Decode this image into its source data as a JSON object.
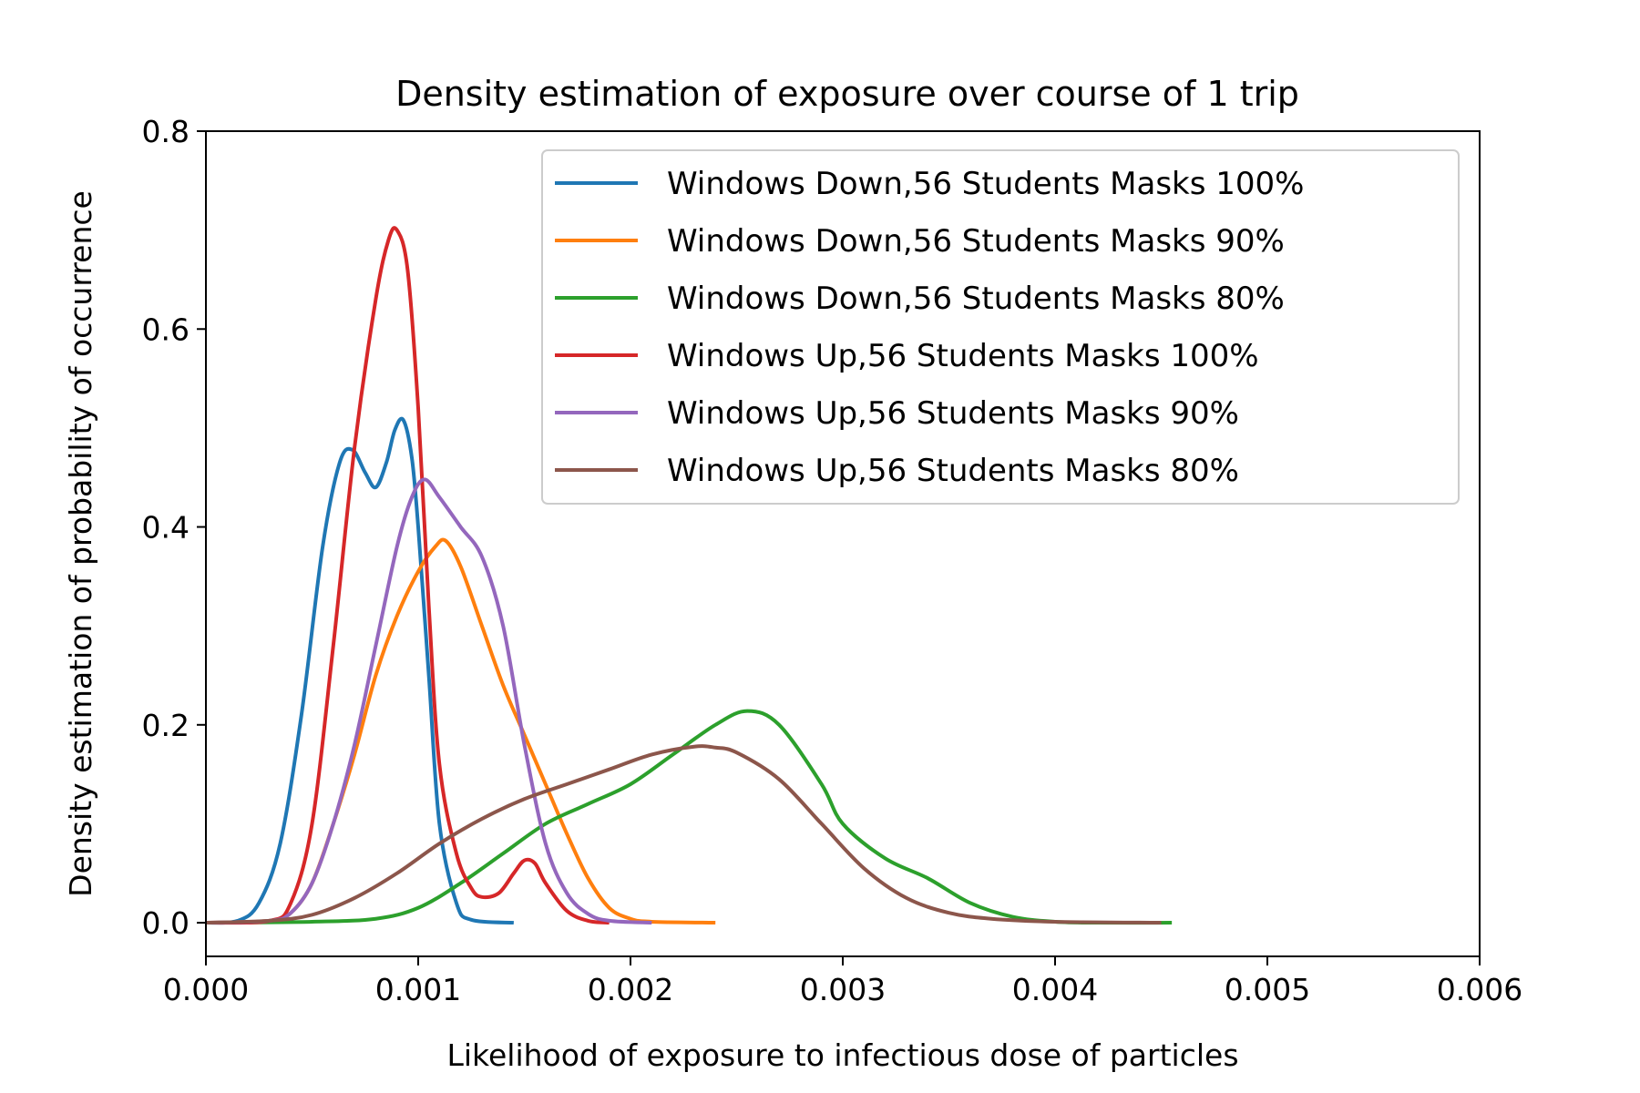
{
  "chart_data": {
    "type": "line",
    "title": "Density estimation of exposure over course of 1 trip",
    "xlabel": "Likelihood of exposure to infectious dose of particles",
    "ylabel": "Density estimation of probability of occurrence",
    "xlim": [
      0,
      0.006
    ],
    "ylim": [
      -0.034,
      0.8
    ],
    "x_ticks": [
      0,
      0.001,
      0.002,
      0.003,
      0.004,
      0.005,
      0.006
    ],
    "x_tick_labels": [
      "0.000",
      "0.001",
      "0.002",
      "0.003",
      "0.004",
      "0.005",
      "0.006"
    ],
    "y_ticks": [
      0,
      0.2,
      0.4,
      0.6,
      0.8
    ],
    "y_tick_labels": [
      "0.0",
      "0.2",
      "0.4",
      "0.6",
      "0.8"
    ],
    "grid": false,
    "legend_position": "top-right",
    "series": [
      {
        "name": "Windows Down,56 Students Masks 100%",
        "color": "#1f77b4",
        "points": [
          [
            0.0,
            0.0
          ],
          [
            0.00015,
            0.002
          ],
          [
            0.00025,
            0.02
          ],
          [
            0.00035,
            0.08
          ],
          [
            0.00045,
            0.21
          ],
          [
            0.00055,
            0.38
          ],
          [
            0.00063,
            0.465
          ],
          [
            0.00069,
            0.478
          ],
          [
            0.00075,
            0.455
          ],
          [
            0.0008,
            0.44
          ],
          [
            0.00085,
            0.465
          ],
          [
            0.00089,
            0.498
          ],
          [
            0.00093,
            0.508
          ],
          [
            0.00097,
            0.47
          ],
          [
            0.001,
            0.4
          ],
          [
            0.00105,
            0.25
          ],
          [
            0.0011,
            0.1
          ],
          [
            0.00118,
            0.02
          ],
          [
            0.00125,
            0.003
          ],
          [
            0.00145,
            0.0
          ]
        ]
      },
      {
        "name": "Windows Down,56 Students Masks 90%",
        "color": "#ff7f0e",
        "points": [
          [
            0.0,
            0.0
          ],
          [
            0.0003,
            0.002
          ],
          [
            0.0004,
            0.01
          ],
          [
            0.0005,
            0.04
          ],
          [
            0.0006,
            0.1
          ],
          [
            0.0007,
            0.17
          ],
          [
            0.0008,
            0.25
          ],
          [
            0.0009,
            0.31
          ],
          [
            0.001,
            0.355
          ],
          [
            0.00108,
            0.38
          ],
          [
            0.00113,
            0.386
          ],
          [
            0.0012,
            0.36
          ],
          [
            0.0013,
            0.3
          ],
          [
            0.0014,
            0.24
          ],
          [
            0.0015,
            0.19
          ],
          [
            0.0016,
            0.14
          ],
          [
            0.0017,
            0.09
          ],
          [
            0.0018,
            0.045
          ],
          [
            0.0019,
            0.015
          ],
          [
            0.002,
            0.004
          ],
          [
            0.0021,
            0.001
          ],
          [
            0.0024,
            0.0
          ]
        ]
      },
      {
        "name": "Windows Down,56 Students Masks 80%",
        "color": "#2ca02c",
        "points": [
          [
            0.0,
            0.0
          ],
          [
            0.0005,
            0.001
          ],
          [
            0.0008,
            0.004
          ],
          [
            0.001,
            0.015
          ],
          [
            0.0012,
            0.04
          ],
          [
            0.0014,
            0.07
          ],
          [
            0.0016,
            0.1
          ],
          [
            0.0018,
            0.12
          ],
          [
            0.002,
            0.14
          ],
          [
            0.0022,
            0.17
          ],
          [
            0.0024,
            0.2
          ],
          [
            0.00255,
            0.214
          ],
          [
            0.0027,
            0.2
          ],
          [
            0.0029,
            0.14
          ],
          [
            0.003,
            0.1
          ],
          [
            0.0032,
            0.065
          ],
          [
            0.0034,
            0.045
          ],
          [
            0.0036,
            0.02
          ],
          [
            0.0038,
            0.006
          ],
          [
            0.004,
            0.001
          ],
          [
            0.0042,
            0.0
          ],
          [
            0.00455,
            0.0
          ]
        ]
      },
      {
        "name": "Windows Up,56 Students Masks 100%",
        "color": "#d62728",
        "points": [
          [
            0.0,
            0.0
          ],
          [
            0.0003,
            0.002
          ],
          [
            0.0004,
            0.02
          ],
          [
            0.0005,
            0.1
          ],
          [
            0.0006,
            0.28
          ],
          [
            0.0007,
            0.48
          ],
          [
            0.0008,
            0.63
          ],
          [
            0.00086,
            0.69
          ],
          [
            0.0009,
            0.7
          ],
          [
            0.00095,
            0.66
          ],
          [
            0.001,
            0.52
          ],
          [
            0.00105,
            0.32
          ],
          [
            0.0011,
            0.16
          ],
          [
            0.00118,
            0.07
          ],
          [
            0.00125,
            0.035
          ],
          [
            0.0013,
            0.026
          ],
          [
            0.00138,
            0.03
          ],
          [
            0.00145,
            0.05
          ],
          [
            0.0015,
            0.063
          ],
          [
            0.00155,
            0.06
          ],
          [
            0.0016,
            0.04
          ],
          [
            0.0017,
            0.012
          ],
          [
            0.0018,
            0.002
          ],
          [
            0.0019,
            0.0
          ]
        ]
      },
      {
        "name": "Windows Up,56 Students Masks 90%",
        "color": "#9467bd",
        "points": [
          [
            0.0,
            0.0
          ],
          [
            0.0003,
            0.002
          ],
          [
            0.0004,
            0.01
          ],
          [
            0.0005,
            0.04
          ],
          [
            0.0006,
            0.1
          ],
          [
            0.0007,
            0.18
          ],
          [
            0.0008,
            0.28
          ],
          [
            0.0009,
            0.38
          ],
          [
            0.00097,
            0.43
          ],
          [
            0.00103,
            0.448
          ],
          [
            0.0011,
            0.43
          ],
          [
            0.0012,
            0.4
          ],
          [
            0.0013,
            0.37
          ],
          [
            0.0014,
            0.3
          ],
          [
            0.0015,
            0.18
          ],
          [
            0.0016,
            0.08
          ],
          [
            0.0017,
            0.03
          ],
          [
            0.0018,
            0.009
          ],
          [
            0.0019,
            0.002
          ],
          [
            0.0021,
            0.0
          ]
        ]
      },
      {
        "name": "Windows Up,56 Students Masks 80%",
        "color": "#8c564b",
        "points": [
          [
            0.0,
            0.0
          ],
          [
            0.0003,
            0.002
          ],
          [
            0.0005,
            0.008
          ],
          [
            0.0007,
            0.025
          ],
          [
            0.0009,
            0.05
          ],
          [
            0.0011,
            0.08
          ],
          [
            0.0013,
            0.105
          ],
          [
            0.0015,
            0.125
          ],
          [
            0.0017,
            0.14
          ],
          [
            0.0019,
            0.155
          ],
          [
            0.0021,
            0.17
          ],
          [
            0.0023,
            0.178
          ],
          [
            0.0024,
            0.177
          ],
          [
            0.0025,
            0.172
          ],
          [
            0.0027,
            0.145
          ],
          [
            0.0029,
            0.1
          ],
          [
            0.0031,
            0.055
          ],
          [
            0.0033,
            0.025
          ],
          [
            0.0035,
            0.01
          ],
          [
            0.0037,
            0.004
          ],
          [
            0.004,
            0.001
          ],
          [
            0.0045,
            0.0
          ]
        ]
      }
    ]
  }
}
